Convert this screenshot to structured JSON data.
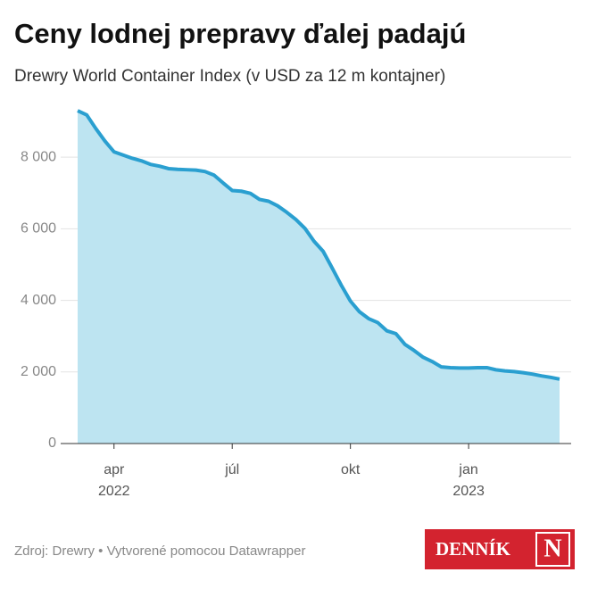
{
  "chart_data": {
    "type": "area",
    "title": "Ceny lodnej prepravy ďalej padajú",
    "subtitle": "Drewry World Container Index (v USD za 12 m kontajner)",
    "source": "Zdroj: Drewry • Vytvorené pomocou Datawrapper",
    "logo": {
      "word": "DENNÍK",
      "letter": "N"
    },
    "categories": [
      null,
      null,
      null,
      null,
      "apr",
      null,
      null,
      null,
      null,
      null,
      null,
      null,
      null,
      null,
      null,
      null,
      null,
      "júl",
      null,
      null,
      null,
      null,
      null,
      null,
      null,
      null,
      null,
      null,
      null,
      null,
      "okt",
      null,
      null,
      null,
      null,
      null,
      null,
      null,
      null,
      null,
      null,
      null,
      null,
      "jan",
      null,
      null,
      null,
      null,
      null,
      null,
      null,
      null,
      null,
      null
    ],
    "category_years": [
      null,
      null,
      null,
      null,
      "2022",
      null,
      null,
      null,
      null,
      null,
      null,
      null,
      null,
      null,
      null,
      null,
      null,
      null,
      null,
      null,
      null,
      null,
      null,
      null,
      null,
      null,
      null,
      null,
      null,
      null,
      null,
      null,
      null,
      null,
      null,
      null,
      null,
      null,
      null,
      null,
      null,
      null,
      null,
      "2023",
      null,
      null,
      null,
      null,
      null,
      null,
      null,
      null,
      null,
      null
    ],
    "values": [
      9300,
      9180,
      8800,
      8450,
      8150,
      8060,
      7970,
      7900,
      7800,
      7750,
      7680,
      7660,
      7650,
      7640,
      7600,
      7500,
      7280,
      7070,
      7050,
      6990,
      6820,
      6770,
      6640,
      6460,
      6260,
      6010,
      5650,
      5370,
      4900,
      4420,
      3980,
      3680,
      3490,
      3380,
      3150,
      3070,
      2770,
      2600,
      2410,
      2290,
      2140,
      2120,
      2110,
      2110,
      2120,
      2120,
      2060,
      2030,
      2010,
      1980,
      1940,
      1890,
      1850,
      1800
    ],
    "color": "#2a9fd0",
    "fill": "#bde4f1",
    "ylim": [
      0,
      9400
    ],
    "yticks": [
      0,
      {
        "value": 2000,
        "label": "2 000"
      },
      {
        "value": 4000,
        "label": "4 000"
      },
      {
        "value": 6000,
        "label": "6 000"
      },
      {
        "value": 8000,
        "label": "8 000"
      }
    ],
    "grid": true
  }
}
